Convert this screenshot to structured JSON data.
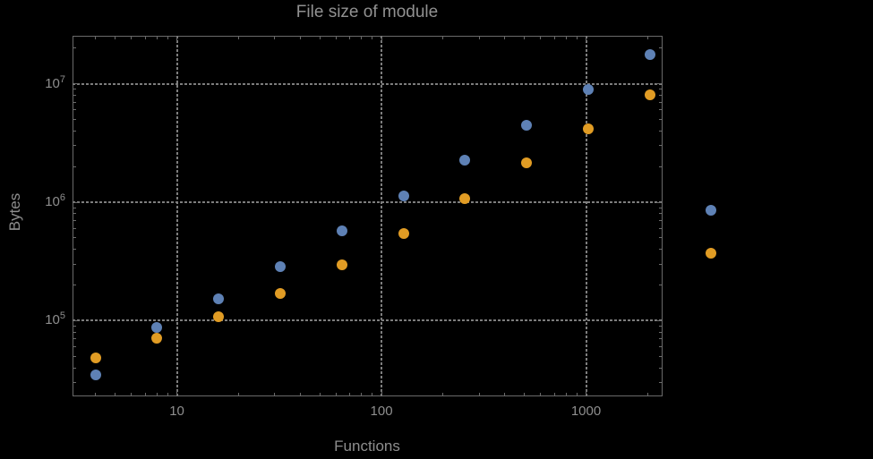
{
  "colors": {
    "background": "#000000",
    "text": "#8e8e8e",
    "frame": "#6a6a6a",
    "gridline": "#7d7d7d"
  },
  "chart_data": {
    "type": "scatter",
    "title": "File size of module",
    "xlabel": "Functions",
    "ylabel": "Bytes",
    "x_scale": "log10",
    "y_scale": "log10",
    "x_range_log10": [
      0.49,
      3.374
    ],
    "y_range_log10": [
      4.362,
      7.404
    ],
    "grid": "dotted lines at decade ticks, both axes",
    "legend": "none visible",
    "x_ticks": [
      {
        "value": 10,
        "label": "10"
      },
      {
        "value": 100,
        "label": "100"
      },
      {
        "value": 1000,
        "label": "1000"
      }
    ],
    "y_ticks": [
      {
        "value": 100000,
        "base": "10",
        "exp": "5"
      },
      {
        "value": 1000000,
        "base": "10",
        "exp": "6"
      },
      {
        "value": 10000000,
        "base": "10",
        "exp": "7"
      }
    ],
    "series": [
      {
        "name": "blue",
        "color": "#5e81b5",
        "x": [
          4,
          8,
          16,
          32,
          64,
          128,
          256,
          512,
          1024,
          2048,
          4096
        ],
        "y": [
          35000,
          88000,
          153000,
          286000,
          573000,
          1130000,
          2260000,
          4460000,
          8900000,
          17500000,
          860000
        ]
      },
      {
        "name": "orange",
        "color": "#e19c24",
        "x": [
          4,
          8,
          16,
          32,
          64,
          128,
          256,
          512,
          1024,
          2048,
          4096
        ],
        "y": [
          49000,
          71000,
          108000,
          170000,
          296000,
          545000,
          1070000,
          2150000,
          4160000,
          8100000,
          372000
        ]
      }
    ],
    "note": "the x=4096 pair of points is rendered outside the right edge of the plot frame (plot range clipping off)"
  }
}
